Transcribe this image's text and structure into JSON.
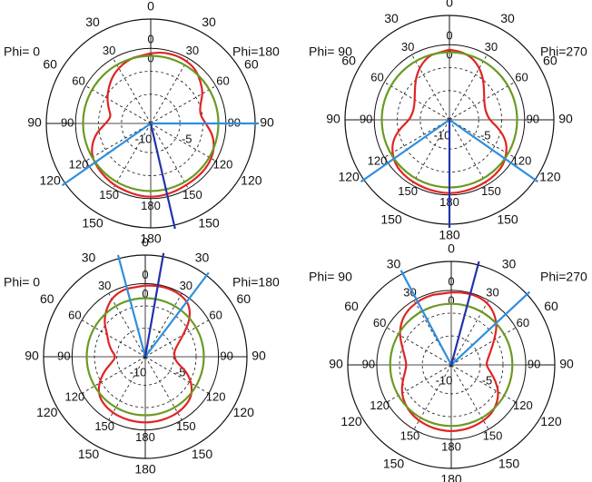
{
  "chart_data": [
    {
      "type": "polar",
      "left_label": "Phi=  0",
      "right_label": "Phi=180",
      "outer_ticks": [
        "0",
        "30",
        "60",
        "90",
        "120",
        "150",
        "180",
        "150",
        "120",
        "90",
        "60",
        "30"
      ],
      "inner_ticks": [
        "0",
        "30",
        "60",
        "90",
        "120",
        "150",
        "180",
        "150",
        "120",
        "90",
        "60",
        "30"
      ],
      "radial_labels": [
        "-10",
        "-5",
        "0"
      ],
      "r_range_db": [
        -15,
        0
      ],
      "series": [
        {
          "color": "#e02424",
          "theta_deg": [
            0,
            10,
            20,
            30,
            40,
            50,
            60,
            70,
            80,
            90,
            100,
            110,
            120,
            130,
            140,
            150,
            160,
            170,
            180,
            190,
            200,
            210,
            220,
            230,
            240,
            250,
            260,
            270,
            280,
            290,
            300,
            310,
            320,
            330,
            340,
            350
          ],
          "r_db": [
            -1,
            -0.6,
            -0.5,
            -0.6,
            -1,
            -2,
            -3,
            -4.5,
            -5,
            -4,
            -2.5,
            -1.5,
            -1,
            -0.8,
            -0.8,
            -0.8,
            -0.6,
            -0.4,
            -0.3,
            -0.4,
            -0.6,
            -0.7,
            -0.9,
            -1.2,
            -1.5,
            -2.5,
            -4,
            -6,
            -7,
            -6,
            -5,
            -4,
            -3,
            -2.2,
            -1.6,
            -1.2
          ]
        },
        {
          "color": "#6a9a23",
          "theta_deg": [
            0,
            90,
            180,
            270
          ],
          "r_db": [
            -1.5,
            -1.5,
            -1.5,
            -1.5
          ]
        }
      ],
      "lines": [
        {
          "color": "#2e8fde",
          "theta_deg": 90
        },
        {
          "color": "#2e8fde",
          "theta_deg": 235
        },
        {
          "color": "#2233aa",
          "theta_deg": 167
        }
      ]
    },
    {
      "type": "polar",
      "left_label": "Phi= 90",
      "right_label": "Phi=270",
      "outer_ticks": [
        "0",
        "30",
        "60",
        "90",
        "120",
        "150",
        "180",
        "150",
        "120",
        "90",
        "60",
        "30"
      ],
      "inner_ticks": [
        "0",
        "30",
        "60",
        "90",
        "120",
        "150",
        "180",
        "150",
        "120",
        "90",
        "60",
        "30"
      ],
      "radial_labels": [
        "-10",
        "-5",
        "0"
      ],
      "r_range_db": [
        -15,
        0
      ],
      "series": [
        {
          "color": "#e02424",
          "theta_deg": [
            0,
            10,
            20,
            30,
            40,
            50,
            60,
            70,
            80,
            90,
            100,
            110,
            120,
            130,
            140,
            150,
            160,
            170,
            180,
            190,
            200,
            210,
            220,
            230,
            240,
            250,
            260,
            270,
            280,
            290,
            300,
            310,
            320,
            330,
            340,
            350
          ],
          "r_db": [
            -1,
            -1.2,
            -1.8,
            -3,
            -4.5,
            -6,
            -7,
            -7.5,
            -7.5,
            -7,
            -5,
            -3,
            -1.8,
            -1,
            -0.7,
            -0.6,
            -0.5,
            -0.4,
            -0.3,
            -0.4,
            -0.5,
            -0.6,
            -0.7,
            -1,
            -1.8,
            -3,
            -5,
            -7,
            -7.5,
            -7.5,
            -7,
            -6,
            -4.5,
            -3,
            -1.8,
            -1.2
          ]
        },
        {
          "color": "#6a9a23",
          "theta_deg": [
            0,
            90,
            180,
            270
          ],
          "r_db": [
            -1.5,
            -1.5,
            -1.5,
            -1.5
          ]
        }
      ],
      "lines": [
        {
          "color": "#2e8fde",
          "theta_deg": 125
        },
        {
          "color": "#2e8fde",
          "theta_deg": 235
        },
        {
          "color": "#2233aa",
          "theta_deg": 180
        }
      ]
    },
    {
      "type": "polar",
      "left_label": "Phi=  0",
      "right_label": "Phi=180",
      "outer_ticks": [
        "0",
        "30",
        "60",
        "90",
        "120",
        "150",
        "180",
        "150",
        "120",
        "90",
        "60",
        "30"
      ],
      "inner_ticks": [
        "0",
        "30",
        "60",
        "90",
        "120",
        "150",
        "180",
        "150",
        "120",
        "90",
        "60",
        "30"
      ],
      "radial_labels": [
        "-10",
        "-5",
        "0"
      ],
      "r_range_db": [
        -15,
        0
      ],
      "series": [
        {
          "color": "#e02424",
          "theta_deg": [
            0,
            10,
            20,
            30,
            40,
            50,
            60,
            70,
            80,
            90,
            100,
            110,
            120,
            130,
            140,
            150,
            160,
            170,
            180,
            190,
            200,
            210,
            220,
            230,
            240,
            250,
            260,
            270,
            280,
            290,
            300,
            310,
            320,
            330,
            340,
            350
          ],
          "r_db": [
            -0.4,
            -0.2,
            -0.2,
            -0.4,
            -1,
            -3,
            -6,
            -8,
            -9,
            -9,
            -8.5,
            -6,
            -4,
            -2.6,
            -2,
            -1.7,
            -1.6,
            -1.5,
            -1.5,
            -1.5,
            -1.6,
            -1.7,
            -2,
            -2.6,
            -4,
            -6,
            -8,
            -9,
            -8,
            -7,
            -6,
            -4,
            -2.5,
            -1.2,
            -0.6,
            -0.4
          ]
        },
        {
          "color": "#6a9a23",
          "theta_deg": [
            0,
            90,
            180,
            270
          ],
          "r_db": [
            -3,
            -3,
            -3,
            -3
          ]
        }
      ],
      "lines": [
        {
          "color": "#2e8fde",
          "theta_deg": 345
        },
        {
          "color": "#2e8fde",
          "theta_deg": 37
        },
        {
          "color": "#2233aa",
          "theta_deg": 10
        }
      ]
    },
    {
      "type": "polar",
      "left_label": "Phi= 90",
      "right_label": "Phi=270",
      "outer_ticks": [
        "0",
        "30",
        "60",
        "90",
        "120",
        "150",
        "180",
        "150",
        "120",
        "90",
        "60",
        "30"
      ],
      "inner_ticks": [
        "0",
        "30",
        "60",
        "90",
        "120",
        "150",
        "180",
        "150",
        "120",
        "90",
        "60",
        "30"
      ],
      "radial_labels": [
        "-10",
        "-5",
        "0"
      ],
      "r_range_db": [
        -15,
        0
      ],
      "series": [
        {
          "color": "#e02424",
          "theta_deg": [
            0,
            10,
            20,
            30,
            40,
            50,
            60,
            70,
            80,
            90,
            100,
            110,
            120,
            130,
            140,
            150,
            160,
            170,
            180,
            190,
            200,
            210,
            220,
            230,
            240,
            250,
            260,
            270,
            280,
            290,
            300,
            310,
            320,
            330,
            340,
            350
          ],
          "r_db": [
            -0.4,
            -0.2,
            -0.2,
            -0.5,
            -1.5,
            -3,
            -5,
            -6.5,
            -7.5,
            -8,
            -7,
            -5.5,
            -4,
            -3,
            -2.3,
            -2,
            -1.8,
            -1.7,
            -1.6,
            -1.7,
            -1.8,
            -2,
            -2.3,
            -2.8,
            -3.5,
            -4.5,
            -5.5,
            -6,
            -5.5,
            -4.5,
            -3,
            -1.8,
            -1,
            -0.6,
            -0.4,
            -0.3
          ]
        },
        {
          "color": "#6a9a23",
          "theta_deg": [
            0,
            90,
            180,
            270
          ],
          "r_db": [
            -2.7,
            -2.7,
            -2.7,
            -2.7
          ]
        }
      ],
      "lines": [
        {
          "color": "#2e8fde",
          "theta_deg": 332
        },
        {
          "color": "#2e8fde",
          "theta_deg": 47
        },
        {
          "color": "#2233aa",
          "theta_deg": 15
        }
      ]
    }
  ]
}
